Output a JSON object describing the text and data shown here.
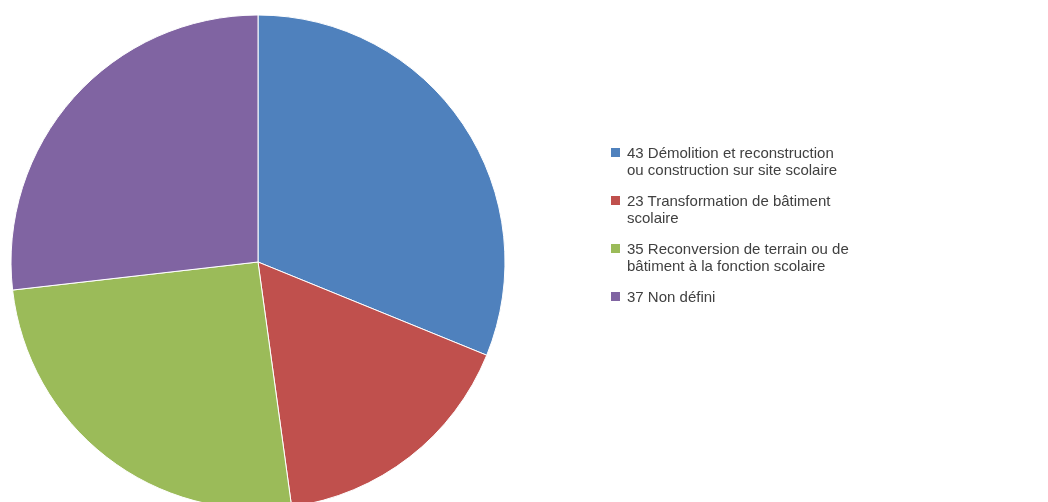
{
  "chart_data": {
    "type": "pie",
    "categories": [
      "43 Démolition et reconstruction ou construction sur site scolaire",
      "23 Transformation de bâtiment scolaire",
      "35 Reconversion de terrain ou de bâtiment à la fonction scolaire",
      "37 Non défini"
    ],
    "values": [
      43,
      23,
      35,
      37
    ],
    "colors": [
      "#4f81bd",
      "#c0504d",
      "#9bbb59",
      "#8064a2"
    ],
    "legend": "right"
  }
}
